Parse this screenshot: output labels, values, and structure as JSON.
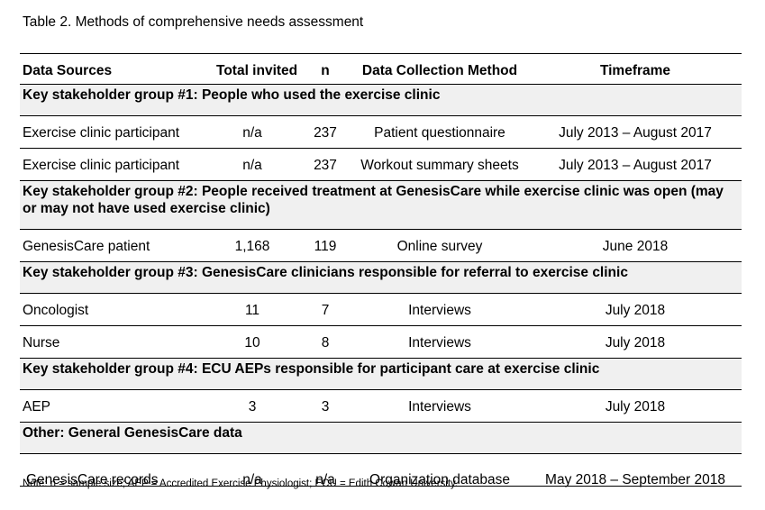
{
  "caption": "Table 2.  Methods of comprehensive needs assessment",
  "headers": {
    "sources": "Data Sources",
    "invited": "Total invited",
    "n": "n",
    "method": "Data Collection Method",
    "timeframe": "Timeframe"
  },
  "groups": [
    {
      "title": "Key stakeholder group #1:  People who used the exercise clinic",
      "rows": [
        {
          "source": "Exercise clinic participant",
          "invited": "n/a",
          "n": "237",
          "method": "Patient questionnaire",
          "timeframe": "July 2013 – August 2017"
        },
        {
          "source": "Exercise clinic participant",
          "invited": "n/a",
          "n": "237",
          "method": "Workout summary sheets",
          "timeframe": "July 2013 – August 2017"
        }
      ]
    },
    {
      "title": "Key stakeholder group #2:  People received treatment at GenesisCare while exercise clinic was open (may or may not have used exercise clinic)",
      "rows": [
        {
          "source": "GenesisCare patient",
          "invited": "1,168",
          "n": "119",
          "method": "Online survey",
          "timeframe": "June 2018"
        }
      ]
    },
    {
      "title": "Key stakeholder group #3:  GenesisCare clinicians responsible for referral to exercise clinic",
      "rows": [
        {
          "source": "Oncologist",
          "invited": "11",
          "n": "7",
          "method": "Interviews",
          "timeframe": "July 2018"
        },
        {
          "source": "Nurse",
          "invited": "10",
          "n": "8",
          "method": "Interviews",
          "timeframe": "July 2018"
        }
      ]
    },
    {
      "title": "Key stakeholder group #4:  ECU AEPs responsible for participant care at exercise clinic",
      "rows": [
        {
          "source": "AEP",
          "invited": "3",
          "n": "3",
          "method": "Interviews",
          "timeframe": "July 2018"
        }
      ]
    },
    {
      "title": "Other: General GenesisCare data",
      "rows": [
        {
          "source": "GenesisCare records",
          "invited": "n/a",
          "n": "n/a",
          "method": "Organization database",
          "timeframe": "May 2018 – September 2018"
        }
      ]
    }
  ],
  "note": "Note: n = sample size; AEP = Accredited Exercise Physiologist; ECU = Edith Cowan University."
}
